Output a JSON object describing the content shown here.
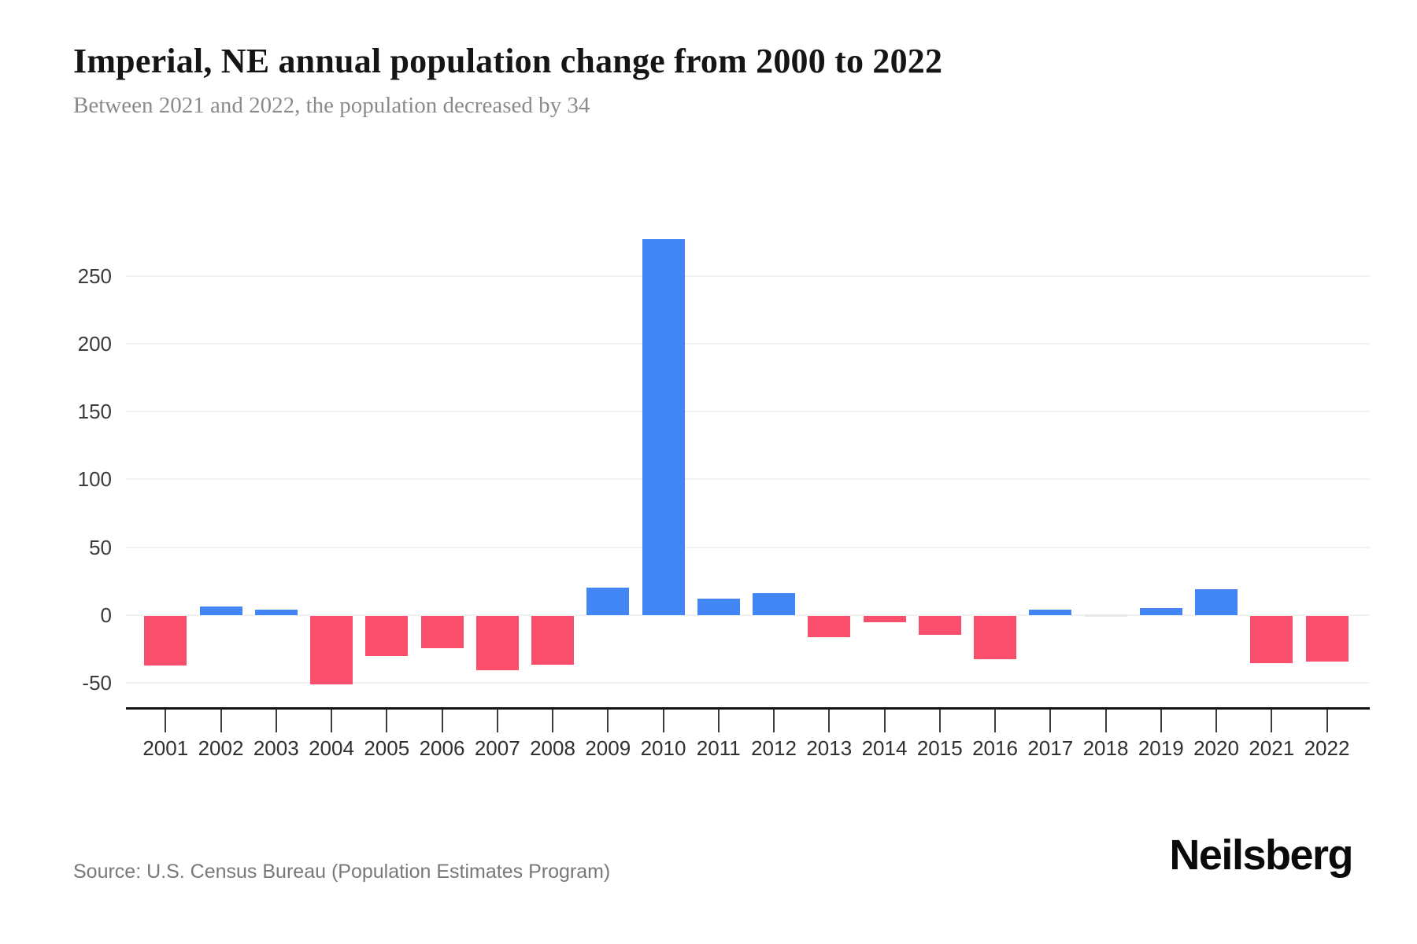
{
  "page": {
    "title": "Imperial, NE annual population change from 2000 to 2022",
    "subtitle": "Between 2021 and 2022, the population decreased by 34",
    "source": "Source: U.S. Census Bureau (Population Estimates Program)",
    "brand": "Neilsberg"
  },
  "chart_data": {
    "type": "bar",
    "title": "Imperial, NE annual population change from 2000 to 2022",
    "subtitle": "Between 2021 and 2022, the population decreased by 34",
    "categories": [
      "2001",
      "2002",
      "2003",
      "2004",
      "2005",
      "2006",
      "2007",
      "2008",
      "2009",
      "2010",
      "2011",
      "2012",
      "2013",
      "2014",
      "2015",
      "2016",
      "2017",
      "2018",
      "2019",
      "2020",
      "2021",
      "2022"
    ],
    "values": [
      -37,
      6,
      4,
      -51,
      -30,
      -24,
      -40,
      -36,
      20,
      277,
      12,
      16,
      -16,
      -5,
      -14,
      -32,
      4,
      0,
      5,
      19,
      -35,
      -34
    ],
    "xlabel": "",
    "ylabel": "",
    "ylim": [
      -60,
      297
    ],
    "yticks": [
      -50,
      0,
      50,
      100,
      150,
      200,
      250
    ],
    "grid": "horizontal",
    "legend": "none",
    "colors": {
      "positive": "#4285f4",
      "negative": "#f94f6d",
      "zero_sliver": "#e9e9e9"
    }
  }
}
